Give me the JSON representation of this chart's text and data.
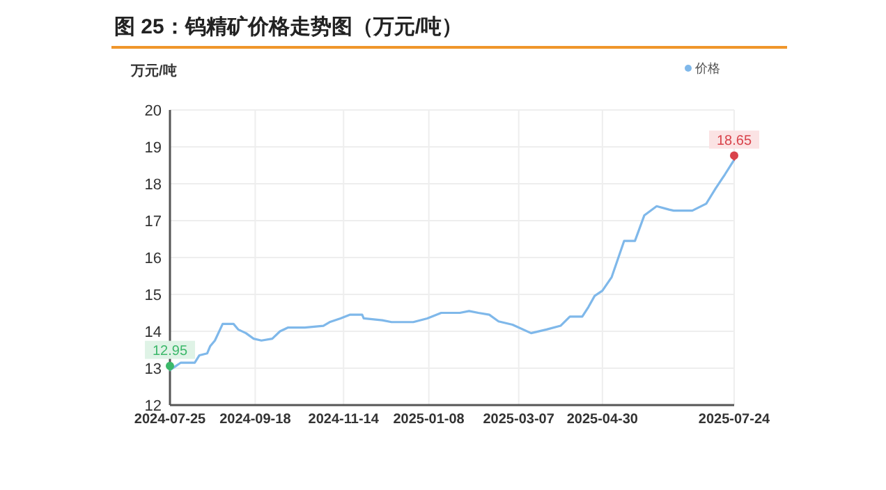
{
  "chart_data": {
    "type": "line",
    "title": "图 25：钨精矿价格走势图（万元/吨）",
    "ylabel": "万元/吨",
    "x": [
      "2024-07-25",
      "2024-08-01",
      "2024-08-10",
      "2024-08-13",
      "2024-08-18",
      "2024-08-20",
      "2024-08-23",
      "2024-08-28",
      "2024-09-04",
      "2024-09-07",
      "2024-09-12",
      "2024-09-17",
      "2024-09-22",
      "2024-09-29",
      "2024-10-04",
      "2024-10-09",
      "2024-10-20",
      "2024-11-01",
      "2024-11-05",
      "2024-11-12",
      "2024-11-18",
      "2024-11-26",
      "2024-11-27",
      "2024-12-09",
      "2024-12-15",
      "2024-12-29",
      "2025-01-07",
      "2025-01-16",
      "2025-01-28",
      "2025-02-03",
      "2025-02-09",
      "2025-02-16",
      "2025-02-22",
      "2025-03-03",
      "2025-03-15",
      "2025-03-25",
      "2025-04-03",
      "2025-04-09",
      "2025-04-17",
      "2025-04-21",
      "2025-04-25",
      "2025-04-30",
      "2025-05-06",
      "2025-05-14",
      "2025-05-21",
      "2025-05-27",
      "2025-06-04",
      "2025-06-12",
      "2025-06-15",
      "2025-06-27",
      "2025-07-06",
      "2025-07-12",
      "2025-07-18",
      "2025-07-24"
    ],
    "series": [
      {
        "name": "价格",
        "color": "#7fb8ea",
        "values": [
          12.95,
          13.15,
          13.15,
          13.35,
          13.4,
          13.6,
          13.75,
          14.2,
          14.2,
          14.05,
          13.95,
          13.8,
          13.75,
          13.8,
          14.0,
          14.1,
          14.1,
          14.15,
          14.25,
          14.35,
          14.45,
          14.45,
          14.35,
          14.3,
          14.25,
          14.25,
          14.35,
          14.5,
          14.5,
          14.55,
          14.5,
          14.45,
          14.27,
          14.18,
          13.95,
          14.05,
          14.15,
          14.4,
          14.4,
          14.66,
          14.96,
          15.1,
          15.47,
          16.45,
          16.45,
          17.14,
          17.39,
          17.3,
          17.27,
          17.27,
          17.46,
          17.87,
          18.25,
          18.65
        ]
      }
    ],
    "ylim": [
      12,
      20
    ],
    "yticks": [
      12,
      13,
      14,
      15,
      16,
      17,
      18,
      19,
      20
    ],
    "xlim": [
      "2024-07-25",
      "2025-07-24"
    ],
    "xticks": [
      "2024-07-25",
      "2024-09-18",
      "2024-11-14",
      "2025-01-08",
      "2025-03-07",
      "2025-04-30",
      "2025-07-24"
    ],
    "annotations": [
      {
        "text": "12.95",
        "x": "2024-07-25",
        "y": 12.95
      },
      {
        "text": "18.65",
        "x": "2025-07-24",
        "y": 18.65
      }
    ],
    "grid": true,
    "legend": "top right",
    "marker": "none",
    "line_style": "solid"
  }
}
